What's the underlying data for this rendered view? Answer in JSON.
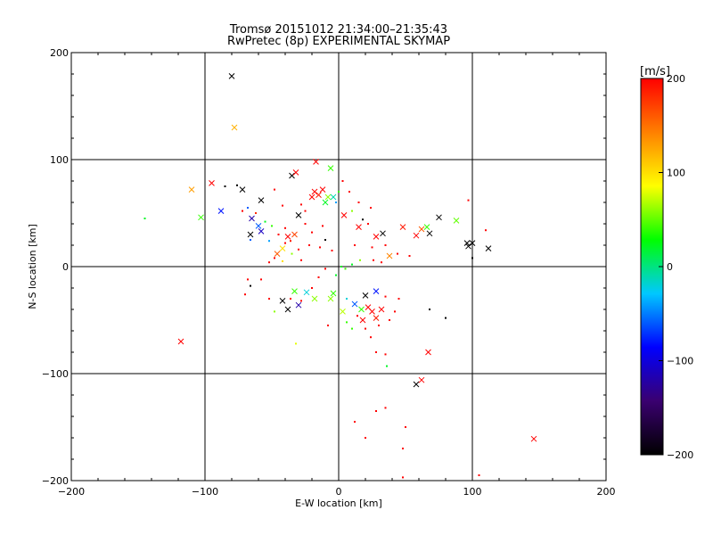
{
  "chart_data": [
    {
      "type": "scatter",
      "title": "Tromsø 20151012 21:34:00–21:35:43",
      "subtitle": "RwPretec (8p) EXPERIMENTAL SKYMAP",
      "xlabel": "E-W location [km]",
      "ylabel": "N-S location [km]",
      "xlim": [
        -200,
        200
      ],
      "ylim": [
        -200,
        200
      ],
      "xticks": [
        -200,
        -100,
        0,
        100,
        200
      ],
      "yticks": [
        -200,
        -100,
        0,
        100,
        200
      ],
      "grid": true,
      "series": [
        {
          "marker": "x",
          "points": [
            {
              "x": -80,
              "y": 178,
              "v": -200
            },
            {
              "x": -78,
              "y": 130,
              "v": 120
            },
            {
              "x": -110,
              "y": 72,
              "v": 130
            },
            {
              "x": -95,
              "y": 78,
              "v": 200
            },
            {
              "x": -103,
              "y": 46,
              "v": 40
            },
            {
              "x": -88,
              "y": 52,
              "v": -80
            },
            {
              "x": -72,
              "y": 72,
              "v": -200
            },
            {
              "x": -58,
              "y": 62,
              "v": -200
            },
            {
              "x": -65,
              "y": 45,
              "v": -120
            },
            {
              "x": -60,
              "y": 38,
              "v": -60
            },
            {
              "x": -58,
              "y": 33,
              "v": -110
            },
            {
              "x": -66,
              "y": 30,
              "v": -200
            },
            {
              "x": -38,
              "y": 28,
              "v": 200
            },
            {
              "x": -33,
              "y": 30,
              "v": 170
            },
            {
              "x": -42,
              "y": 17,
              "v": 100
            },
            {
              "x": -46,
              "y": 12,
              "v": 160
            },
            {
              "x": -30,
              "y": 48,
              "v": -200
            },
            {
              "x": -35,
              "y": 85,
              "v": -200
            },
            {
              "x": -32,
              "y": 88,
              "v": 200
            },
            {
              "x": -17,
              "y": 98,
              "v": 200
            },
            {
              "x": -18,
              "y": 70,
              "v": 200
            },
            {
              "x": -15,
              "y": 67,
              "v": 190
            },
            {
              "x": -12,
              "y": 72,
              "v": 200
            },
            {
              "x": -20,
              "y": 65,
              "v": 200
            },
            {
              "x": -10,
              "y": 60,
              "v": 20
            },
            {
              "x": -6,
              "y": 92,
              "v": 40
            },
            {
              "x": -8,
              "y": 65,
              "v": 60
            },
            {
              "x": -4,
              "y": 65,
              "v": -10
            },
            {
              "x": 4,
              "y": 48,
              "v": 200
            },
            {
              "x": 15,
              "y": 37,
              "v": 200
            },
            {
              "x": 28,
              "y": 28,
              "v": 200
            },
            {
              "x": 33,
              "y": 31,
              "v": -200
            },
            {
              "x": 38,
              "y": 10,
              "v": 140
            },
            {
              "x": 48,
              "y": 37,
              "v": 190
            },
            {
              "x": 58,
              "y": 29,
              "v": 200
            },
            {
              "x": 62,
              "y": 35,
              "v": 160
            },
            {
              "x": 66,
              "y": 37,
              "v": 40
            },
            {
              "x": 68,
              "y": 31,
              "v": -200
            },
            {
              "x": 75,
              "y": 46,
              "v": -200
            },
            {
              "x": 88,
              "y": 43,
              "v": 50
            },
            {
              "x": 97,
              "y": 19,
              "v": -200
            },
            {
              "x": 100,
              "y": 22,
              "v": -200
            },
            {
              "x": 112,
              "y": 17,
              "v": -200
            },
            {
              "x": 96,
              "y": 22,
              "v": -200
            },
            {
              "x": -42,
              "y": -32,
              "v": -200
            },
            {
              "x": -33,
              "y": -23,
              "v": 40
            },
            {
              "x": -24,
              "y": -24,
              "v": -20
            },
            {
              "x": -30,
              "y": -36,
              "v": -120
            },
            {
              "x": -38,
              "y": -40,
              "v": -200
            },
            {
              "x": -18,
              "y": -30,
              "v": 60
            },
            {
              "x": -6,
              "y": -30,
              "v": 60
            },
            {
              "x": -4,
              "y": -25,
              "v": 40
            },
            {
              "x": 3,
              "y": -42,
              "v": 70
            },
            {
              "x": 12,
              "y": -35,
              "v": -60
            },
            {
              "x": 20,
              "y": -27,
              "v": -200
            },
            {
              "x": 28,
              "y": -23,
              "v": -80
            },
            {
              "x": 17,
              "y": -40,
              "v": 40
            },
            {
              "x": 25,
              "y": -42,
              "v": 200
            },
            {
              "x": 32,
              "y": -40,
              "v": 200
            },
            {
              "x": 22,
              "y": -38,
              "v": 200
            },
            {
              "x": 18,
              "y": -50,
              "v": 200
            },
            {
              "x": 28,
              "y": -48,
              "v": 190
            },
            {
              "x": -118,
              "y": -70,
              "v": 200
            },
            {
              "x": 58,
              "y": -110,
              "v": -200
            },
            {
              "x": 62,
              "y": -106,
              "v": 200
            },
            {
              "x": 67,
              "y": -80,
              "v": 200
            },
            {
              "x": 146,
              "y": -161,
              "v": 200
            }
          ]
        },
        {
          "marker": "dot",
          "points": [
            {
              "x": -145,
              "y": 45,
              "v": 20
            },
            {
              "x": -85,
              "y": 75,
              "v": -200
            },
            {
              "x": -76,
              "y": 76,
              "v": -200
            },
            {
              "x": -68,
              "y": 55,
              "v": -60
            },
            {
              "x": -62,
              "y": 50,
              "v": 180
            },
            {
              "x": -72,
              "y": 52,
              "v": 200
            },
            {
              "x": -55,
              "y": 42,
              "v": 20
            },
            {
              "x": -50,
              "y": 38,
              "v": 40
            },
            {
              "x": -66,
              "y": 25,
              "v": -60
            },
            {
              "x": -52,
              "y": 24,
              "v": -40
            },
            {
              "x": -45,
              "y": 30,
              "v": 200
            },
            {
              "x": -40,
              "y": 36,
              "v": 200
            },
            {
              "x": -36,
              "y": 24,
              "v": 190
            },
            {
              "x": -40,
              "y": 22,
              "v": 200
            },
            {
              "x": -30,
              "y": 16,
              "v": 200
            },
            {
              "x": -35,
              "y": 12,
              "v": 60
            },
            {
              "x": -48,
              "y": 8,
              "v": 200
            },
            {
              "x": -52,
              "y": 4,
              "v": 200
            },
            {
              "x": -42,
              "y": 5,
              "v": 100
            },
            {
              "x": -28,
              "y": 6,
              "v": 200
            },
            {
              "x": -22,
              "y": 20,
              "v": 200
            },
            {
              "x": -20,
              "y": 32,
              "v": 200
            },
            {
              "x": -25,
              "y": 40,
              "v": 200
            },
            {
              "x": -12,
              "y": 38,
              "v": 200
            },
            {
              "x": -14,
              "y": 18,
              "v": 200
            },
            {
              "x": -10,
              "y": 25,
              "v": -200
            },
            {
              "x": -5,
              "y": 15,
              "v": 200
            },
            {
              "x": -42,
              "y": 57,
              "v": 200
            },
            {
              "x": -48,
              "y": 72,
              "v": 200
            },
            {
              "x": -28,
              "y": 58,
              "v": 200
            },
            {
              "x": -25,
              "y": 52,
              "v": 200
            },
            {
              "x": -2,
              "y": 60,
              "v": -40
            },
            {
              "x": 0,
              "y": 70,
              "v": 40
            },
            {
              "x": 3,
              "y": 80,
              "v": 200
            },
            {
              "x": 8,
              "y": 70,
              "v": 200
            },
            {
              "x": 15,
              "y": 60,
              "v": 200
            },
            {
              "x": 24,
              "y": 55,
              "v": 200
            },
            {
              "x": 10,
              "y": 52,
              "v": 60
            },
            {
              "x": 18,
              "y": 44,
              "v": -200
            },
            {
              "x": 22,
              "y": 40,
              "v": 200
            },
            {
              "x": 12,
              "y": 20,
              "v": 200
            },
            {
              "x": 25,
              "y": 18,
              "v": 200
            },
            {
              "x": 35,
              "y": 20,
              "v": 200
            },
            {
              "x": 44,
              "y": 12,
              "v": 200
            },
            {
              "x": 2,
              "y": 0,
              "v": 20
            },
            {
              "x": 5,
              "y": -2,
              "v": 40
            },
            {
              "x": 10,
              "y": 2,
              "v": 20
            },
            {
              "x": 16,
              "y": 6,
              "v": 60
            },
            {
              "x": 26,
              "y": 6,
              "v": 200
            },
            {
              "x": 32,
              "y": 4,
              "v": 200
            },
            {
              "x": 53,
              "y": 10,
              "v": 200
            },
            {
              "x": 97,
              "y": 62,
              "v": 200
            },
            {
              "x": 110,
              "y": 34,
              "v": 200
            },
            {
              "x": 100,
              "y": 8,
              "v": -200
            },
            {
              "x": -68,
              "y": -12,
              "v": 200
            },
            {
              "x": -66,
              "y": -18,
              "v": -200
            },
            {
              "x": -58,
              "y": -12,
              "v": 200
            },
            {
              "x": -70,
              "y": -26,
              "v": 200
            },
            {
              "x": -52,
              "y": -30,
              "v": 200
            },
            {
              "x": -48,
              "y": -42,
              "v": 60
            },
            {
              "x": -36,
              "y": -30,
              "v": 200
            },
            {
              "x": -28,
              "y": -32,
              "v": 200
            },
            {
              "x": -20,
              "y": -20,
              "v": 200
            },
            {
              "x": -15,
              "y": -10,
              "v": 200
            },
            {
              "x": -10,
              "y": -2,
              "v": 200
            },
            {
              "x": -2,
              "y": -8,
              "v": 20
            },
            {
              "x": -32,
              "y": -72,
              "v": 80
            },
            {
              "x": -8,
              "y": -55,
              "v": 200
            },
            {
              "x": 6,
              "y": -52,
              "v": 40
            },
            {
              "x": 10,
              "y": -58,
              "v": 40
            },
            {
              "x": 6,
              "y": -30,
              "v": -20
            },
            {
              "x": 14,
              "y": -46,
              "v": 200
            },
            {
              "x": 20,
              "y": -58,
              "v": 200
            },
            {
              "x": 30,
              "y": -55,
              "v": 200
            },
            {
              "x": 38,
              "y": -50,
              "v": 200
            },
            {
              "x": 42,
              "y": -42,
              "v": 200
            },
            {
              "x": 35,
              "y": -28,
              "v": 200
            },
            {
              "x": 45,
              "y": -30,
              "v": 200
            },
            {
              "x": 24,
              "y": -66,
              "v": 200
            },
            {
              "x": 28,
              "y": -80,
              "v": 200
            },
            {
              "x": 35,
              "y": -82,
              "v": 200
            },
            {
              "x": 36,
              "y": -93,
              "v": 20
            },
            {
              "x": 68,
              "y": -40,
              "v": -200
            },
            {
              "x": 80,
              "y": -48,
              "v": -200
            },
            {
              "x": 12,
              "y": -145,
              "v": 200
            },
            {
              "x": 28,
              "y": -135,
              "v": 200
            },
            {
              "x": 35,
              "y": -132,
              "v": 200
            },
            {
              "x": 20,
              "y": -160,
              "v": 200
            },
            {
              "x": 48,
              "y": -170,
              "v": 200
            },
            {
              "x": 50,
              "y": -150,
              "v": 200
            },
            {
              "x": 105,
              "y": -195,
              "v": 200
            },
            {
              "x": 48,
              "y": -197,
              "v": 200
            }
          ]
        }
      ]
    },
    {
      "type": "heatmap",
      "title": "[m/s]",
      "ylim": [
        -200,
        200
      ],
      "yticks": [
        -200,
        -100,
        0,
        100,
        200
      ],
      "colormap": [
        "#000000",
        "#3a0070",
        "#0000ff",
        "#00c8ff",
        "#00ff00",
        "#ffff00",
        "#ff8000",
        "#ff0000"
      ]
    }
  ]
}
